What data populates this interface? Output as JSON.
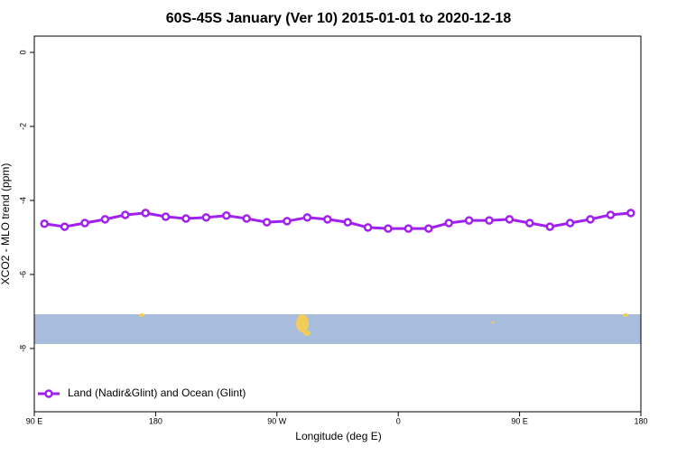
{
  "chart_data": {
    "type": "line",
    "title": "60S-45S January (Ver 10)   2015-01-01 to 2020-12-18",
    "x_label": "Longitude (deg E)",
    "y_label": "XCO2 - MLO trend (ppm)",
    "x": [
      97.5,
      112.5,
      127.5,
      142.5,
      157.5,
      172.5,
      187.5,
      202.5,
      217.5,
      232.5,
      247.5,
      262.5,
      277.5,
      292.5,
      307.5,
      322.5,
      337.5,
      352.5,
      367.5,
      382.5,
      397.5,
      412.5,
      427.5,
      442.5,
      457.5,
      472.5,
      487.5,
      502.5,
      517.5,
      532.5
    ],
    "series": [
      {
        "name": "Land (Nadir&Glint) and Ocean (Glint)",
        "color": "#a020f0",
        "values": [
          -4.63,
          -4.71,
          -4.61,
          -4.51,
          -4.39,
          -4.34,
          -4.44,
          -4.49,
          -4.46,
          -4.41,
          -4.49,
          -4.59,
          -4.56,
          -4.46,
          -4.51,
          -4.59,
          -4.73,
          -4.76,
          -4.76,
          -4.76,
          -4.61,
          -4.54,
          -4.54,
          -4.51,
          -4.61,
          -4.71,
          -4.61,
          -4.51,
          -4.39,
          -4.34
        ]
      }
    ],
    "xlim": [
      90,
      540
    ],
    "xticks": [
      {
        "value": 90,
        "label": "90 E"
      },
      180,
      {
        "value": 270,
        "label": "90 W"
      },
      {
        "value": 360,
        "label": "0"
      },
      {
        "value": 450,
        "label": "90 E"
      },
      {
        "value": 540,
        "label": "180"
      }
    ],
    "ylim": [
      -9.71,
      0.44
    ],
    "yticks": [
      0,
      -2,
      -4,
      -6,
      -8
    ],
    "legend_position": "bottomleft"
  }
}
